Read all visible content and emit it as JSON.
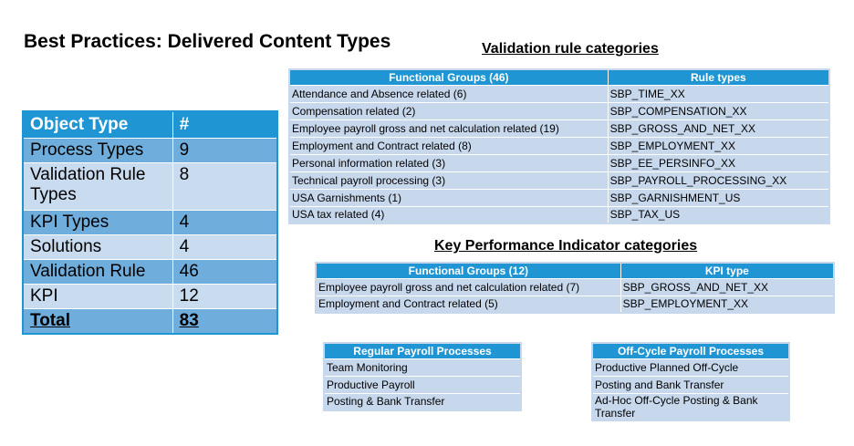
{
  "title": "Best Practices: Delivered Content Types",
  "object_table": {
    "headers": [
      "Object Type",
      "#"
    ],
    "rows": [
      {
        "type": "Process Types",
        "count": "9"
      },
      {
        "type": "Validation Rule Types",
        "count": "8"
      },
      {
        "type": "KPI Types",
        "count": "4"
      },
      {
        "type": "Solutions",
        "count": "4"
      },
      {
        "type": "Validation Rule",
        "count": "46"
      },
      {
        "type": "KPI",
        "count": "12"
      }
    ],
    "total": {
      "label": "Total",
      "count": "83"
    }
  },
  "validation": {
    "title": "Validation rule categories",
    "headers": [
      "Functional Groups (46)",
      "Rule types"
    ],
    "rows": [
      [
        "Attendance and Absence related (6)",
        "SBP_TIME_XX"
      ],
      [
        "Compensation related (2)",
        "SBP_COMPENSATION_XX"
      ],
      [
        "Employee payroll gross and net calculation related (19)",
        "SBP_GROSS_AND_NET_XX"
      ],
      [
        "Employment and Contract related (8)",
        "SBP_EMPLOYMENT_XX"
      ],
      [
        "Personal information related (3)",
        "SBP_EE_PERSINFO_XX"
      ],
      [
        "Technical payroll processing (3)",
        "SBP_PAYROLL_PROCESSING_XX"
      ],
      [
        "USA Garnishments (1)",
        "SBP_GARNISHMENT_US"
      ],
      [
        "USA tax related (4)",
        "SBP_TAX_US"
      ]
    ]
  },
  "kpi": {
    "title": "Key Performance Indicator categories",
    "headers": [
      "Functional Groups (12)",
      "KPI type"
    ],
    "rows": [
      [
        "Employee payroll gross and net calculation related (7)",
        "SBP_GROSS_AND_NET_XX"
      ],
      [
        "Employment and Contract related (5)",
        "SBP_EMPLOYMENT_XX"
      ]
    ]
  },
  "regular": {
    "header": "Regular Payroll Processes",
    "items": [
      "Team Monitoring",
      "Productive Payroll",
      "Posting & Bank Transfer"
    ]
  },
  "offcycle": {
    "header": "Off-Cycle Payroll Processes",
    "items": [
      "Productive Planned Off-Cycle",
      "Posting and Bank Transfer",
      "Ad-Hoc Off-Cycle Posting & Bank Transfer"
    ]
  }
}
